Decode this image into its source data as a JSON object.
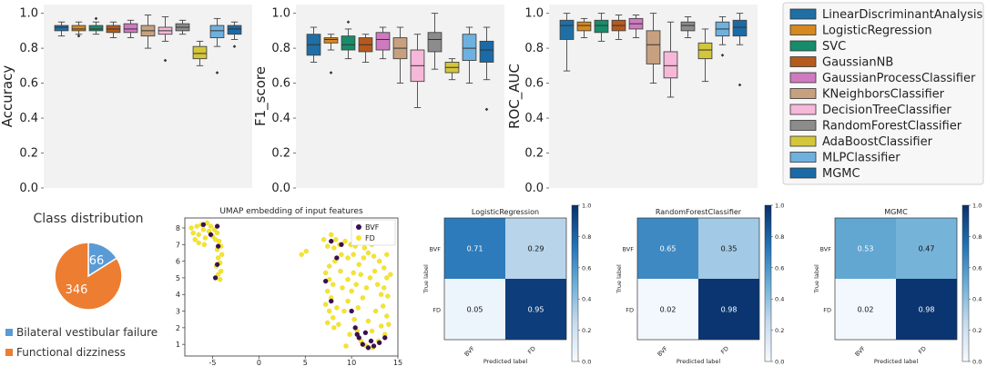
{
  "colors": {
    "models": [
      "#1f6fa5",
      "#d6891e",
      "#178c6a",
      "#b55a1c",
      "#cf7ac0",
      "#c7a17f",
      "#f5b8d8",
      "#8c8c8c",
      "#d4c63a",
      "#6eb1df",
      "#1a6aa6"
    ],
    "pie_bvf": "#5b9bd5",
    "pie_fd": "#ed7d31",
    "umap_bvf": "#3b0f4f",
    "umap_fd": "#f5e52a"
  },
  "chart_data": [
    {
      "type": "box",
      "id": "accuracy",
      "ylabel": "Accuracy",
      "ylim": [
        0.0,
        1.05
      ],
      "yticks": [
        "0.0",
        "0.2",
        "0.4",
        "0.6",
        "0.8",
        "1.0"
      ],
      "series": [
        {
          "name": "LinearDiscriminantAnalysis",
          "stats": [
            0.87,
            0.9,
            0.92,
            0.93,
            0.95
          ],
          "outliers": []
        },
        {
          "name": "LogisticRegression",
          "stats": [
            0.88,
            0.9,
            0.91,
            0.93,
            0.95
          ],
          "outliers": [
            0.87
          ]
        },
        {
          "name": "SVC",
          "stats": [
            0.88,
            0.9,
            0.91,
            0.93,
            0.95
          ],
          "outliers": [
            0.97
          ]
        },
        {
          "name": "GaussianNB",
          "stats": [
            0.86,
            0.89,
            0.91,
            0.93,
            0.95
          ],
          "outliers": []
        },
        {
          "name": "GaussianProcessClassifier",
          "stats": [
            0.86,
            0.89,
            0.91,
            0.94,
            0.96
          ],
          "outliers": []
        },
        {
          "name": "KNeighborsClassifier",
          "stats": [
            0.8,
            0.87,
            0.9,
            0.93,
            0.99
          ],
          "outliers": []
        },
        {
          "name": "DecisionTreeClassifier",
          "stats": [
            0.84,
            0.88,
            0.9,
            0.92,
            0.98
          ],
          "outliers": [
            0.73
          ]
        },
        {
          "name": "RandomForestClassifier",
          "stats": [
            0.88,
            0.9,
            0.92,
            0.94,
            0.96
          ],
          "outliers": []
        },
        {
          "name": "AdaBoostClassifier",
          "stats": [
            0.7,
            0.74,
            0.77,
            0.81,
            0.84
          ],
          "outliers": []
        },
        {
          "name": "MLPClassifier",
          "stats": [
            0.81,
            0.86,
            0.9,
            0.93,
            0.97
          ],
          "outliers": [
            0.66
          ]
        },
        {
          "name": "MGMC",
          "stats": [
            0.85,
            0.88,
            0.91,
            0.93,
            0.95
          ],
          "outliers": [
            0.81
          ]
        }
      ]
    },
    {
      "type": "box",
      "id": "f1",
      "ylabel": "F1_score",
      "ylim": [
        0.0,
        1.05
      ],
      "yticks": [
        "0.0",
        "0.2",
        "0.4",
        "0.6",
        "0.8",
        "1.0"
      ],
      "series": [
        {
          "name": "LinearDiscriminantAnalysis",
          "stats": [
            0.72,
            0.76,
            0.82,
            0.88,
            0.92
          ],
          "outliers": []
        },
        {
          "name": "LogisticRegression",
          "stats": [
            0.79,
            0.83,
            0.85,
            0.86,
            0.88
          ],
          "outliers": [
            0.66
          ]
        },
        {
          "name": "SVC",
          "stats": [
            0.74,
            0.79,
            0.82,
            0.87,
            0.91
          ],
          "outliers": [
            0.95
          ]
        },
        {
          "name": "GaussianNB",
          "stats": [
            0.72,
            0.78,
            0.82,
            0.86,
            0.88
          ],
          "outliers": []
        },
        {
          "name": "GaussianProcessClassifier",
          "stats": [
            0.74,
            0.79,
            0.85,
            0.89,
            0.92
          ],
          "outliers": []
        },
        {
          "name": "KNeighborsClassifier",
          "stats": [
            0.6,
            0.74,
            0.8,
            0.86,
            0.92
          ],
          "outliers": []
        },
        {
          "name": "DecisionTreeClassifier",
          "stats": [
            0.46,
            0.61,
            0.7,
            0.79,
            0.88
          ],
          "outliers": []
        },
        {
          "name": "RandomForestClassifier",
          "stats": [
            0.68,
            0.78,
            0.85,
            0.89,
            1.0
          ],
          "outliers": []
        },
        {
          "name": "AdaBoostClassifier",
          "stats": [
            0.62,
            0.66,
            0.69,
            0.72,
            0.74
          ],
          "outliers": []
        },
        {
          "name": "MLPClassifier",
          "stats": [
            0.6,
            0.73,
            0.8,
            0.88,
            0.92
          ],
          "outliers": []
        },
        {
          "name": "MGMC",
          "stats": [
            0.62,
            0.72,
            0.79,
            0.84,
            0.92
          ],
          "outliers": [
            0.45
          ]
        }
      ]
    },
    {
      "type": "box",
      "id": "roc",
      "ylabel": "ROC_AUC",
      "ylim": [
        0.0,
        1.05
      ],
      "yticks": [
        "0.0",
        "0.2",
        "0.4",
        "0.6",
        "0.8",
        "1.0"
      ],
      "series": [
        {
          "name": "LinearDiscriminantAnalysis",
          "stats": [
            0.67,
            0.85,
            0.93,
            0.96,
            1.0
          ],
          "outliers": []
        },
        {
          "name": "LogisticRegression",
          "stats": [
            0.86,
            0.9,
            0.93,
            0.95,
            0.97
          ],
          "outliers": []
        },
        {
          "name": "SVC",
          "stats": [
            0.84,
            0.89,
            0.93,
            0.96,
            1.0
          ],
          "outliers": []
        },
        {
          "name": "GaussianNB",
          "stats": [
            0.85,
            0.9,
            0.93,
            0.96,
            0.99
          ],
          "outliers": []
        },
        {
          "name": "GaussianProcessClassifier",
          "stats": [
            0.86,
            0.91,
            0.94,
            0.97,
            0.99
          ],
          "outliers": []
        },
        {
          "name": "KNeighborsClassifier",
          "stats": [
            0.6,
            0.71,
            0.82,
            0.9,
            1.0
          ],
          "outliers": []
        },
        {
          "name": "DecisionTreeClassifier",
          "stats": [
            0.52,
            0.63,
            0.7,
            0.78,
            0.95
          ],
          "outliers": []
        },
        {
          "name": "RandomForestClassifier",
          "stats": [
            0.86,
            0.9,
            0.93,
            0.95,
            0.98
          ],
          "outliers": []
        },
        {
          "name": "AdaBoostClassifier",
          "stats": [
            0.61,
            0.74,
            0.79,
            0.83,
            0.91
          ],
          "outliers": []
        },
        {
          "name": "MLPClassifier",
          "stats": [
            0.82,
            0.87,
            0.91,
            0.95,
            0.98
          ],
          "outliers": [
            0.76
          ]
        },
        {
          "name": "MGMC",
          "stats": [
            0.82,
            0.87,
            0.92,
            0.96,
            1.0
          ],
          "outliers": [
            0.59
          ]
        }
      ]
    },
    {
      "type": "legend",
      "entries": [
        "LinearDiscriminantAnalysis",
        "LogisticRegression",
        "SVC",
        "GaussianNB",
        "GaussianProcessClassifier",
        "KNeighborsClassifier",
        "DecisionTreeClassifier",
        "RandomForestClassifier",
        "AdaBoostClassifier",
        "MLPClassifier",
        "MGMC"
      ]
    },
    {
      "type": "pie",
      "title": "Class distribution",
      "labels": [
        "Bilateral vestibular failure",
        "Functional dizziness"
      ],
      "values": [
        66,
        346
      ]
    },
    {
      "type": "scatter",
      "title": "UMAP embedding of input features",
      "xlim": [
        -8,
        15
      ],
      "ylim": [
        0.3,
        8.6
      ],
      "xticks": [
        -5,
        0,
        5,
        10,
        15
      ],
      "yticks": [
        1,
        2,
        3,
        4,
        5,
        6,
        7,
        8
      ],
      "legend": [
        "BVF",
        "FD"
      ],
      "series": [
        {
          "name": "FD",
          "points": [
            [
              -7.3,
              8.0
            ],
            [
              -7.1,
              7.7
            ],
            [
              -6.9,
              7.3
            ],
            [
              -6.7,
              8.1
            ],
            [
              -6.5,
              7.6
            ],
            [
              -6.2,
              8.2
            ],
            [
              -6.0,
              7.9
            ],
            [
              -5.8,
              7.4
            ],
            [
              -5.6,
              8.3
            ],
            [
              -5.4,
              7.8
            ],
            [
              -5.2,
              8.1
            ],
            [
              -5.0,
              7.5
            ],
            [
              -4.8,
              7.9
            ],
            [
              -4.5,
              7.7
            ],
            [
              -4.3,
              7.2
            ],
            [
              -4.1,
              6.9
            ],
            [
              -4.5,
              6.7
            ],
            [
              -4.0,
              6.4
            ],
            [
              -4.4,
              6.2
            ],
            [
              -4.2,
              5.9
            ],
            [
              -4.6,
              5.7
            ],
            [
              -4.1,
              5.4
            ],
            [
              -4.4,
              5.2
            ],
            [
              -4.2,
              4.9
            ],
            [
              -6.5,
              7.1
            ],
            [
              -5.9,
              7.0
            ],
            [
              -4.7,
              7.3
            ],
            [
              4.6,
              6.4
            ],
            [
              5.1,
              6.6
            ],
            [
              7.0,
              7.3
            ],
            [
              7.4,
              6.9
            ],
            [
              7.8,
              7.6
            ],
            [
              8.3,
              7.3
            ],
            [
              8.1,
              6.8
            ],
            [
              8.7,
              7.0
            ],
            [
              9.3,
              7.2
            ],
            [
              9.9,
              7.0
            ],
            [
              10.4,
              6.9
            ],
            [
              10.2,
              6.4
            ],
            [
              9.6,
              6.2
            ],
            [
              8.9,
              6.4
            ],
            [
              8.2,
              6.0
            ],
            [
              7.6,
              5.7
            ],
            [
              7.2,
              5.3
            ],
            [
              7.6,
              4.9
            ],
            [
              8.0,
              4.6
            ],
            [
              7.4,
              4.2
            ],
            [
              7.8,
              3.8
            ],
            [
              7.2,
              3.4
            ],
            [
              7.6,
              3.0
            ],
            [
              8.0,
              2.6
            ],
            [
              7.4,
              2.3
            ],
            [
              8.1,
              2.0
            ],
            [
              8.6,
              2.2
            ],
            [
              9.2,
              3.0
            ],
            [
              9.6,
              3.6
            ],
            [
              10.0,
              4.2
            ],
            [
              9.6,
              4.9
            ],
            [
              10.2,
              5.3
            ],
            [
              10.8,
              5.8
            ],
            [
              11.3,
              6.2
            ],
            [
              11.8,
              6.5
            ],
            [
              12.4,
              6.3
            ],
            [
              13.0,
              6.0
            ],
            [
              13.5,
              5.6
            ],
            [
              13.8,
              5.0
            ],
            [
              13.5,
              4.4
            ],
            [
              13.9,
              3.9
            ],
            [
              13.4,
              3.3
            ],
            [
              13.8,
              2.7
            ],
            [
              13.2,
              2.1
            ],
            [
              13.6,
              1.6
            ],
            [
              12.9,
              1.2
            ],
            [
              12.3,
              0.8
            ],
            [
              11.6,
              0.9
            ],
            [
              11.0,
              1.2
            ],
            [
              10.6,
              1.8
            ],
            [
              10.3,
              2.5
            ],
            [
              10.7,
              3.2
            ],
            [
              11.2,
              3.8
            ],
            [
              11.6,
              4.4
            ],
            [
              12.0,
              5.0
            ],
            [
              12.5,
              5.4
            ],
            [
              11.0,
              5.2
            ],
            [
              10.5,
              4.6
            ],
            [
              12.8,
              4.6
            ],
            [
              13.2,
              4.0
            ],
            [
              12.6,
              3.0
            ],
            [
              11.8,
              2.4
            ],
            [
              12.2,
              1.8
            ],
            [
              8.8,
              5.4
            ],
            [
              9.0,
              4.4
            ],
            [
              8.4,
              3.2
            ],
            [
              11.4,
              6.8
            ],
            [
              12.2,
              7.0
            ],
            [
              13.8,
              6.4
            ],
            [
              14.2,
              5.2
            ],
            [
              14.0,
              2.2
            ],
            [
              9.8,
              1.6
            ],
            [
              9.4,
              0.9
            ]
          ]
        },
        {
          "name": "BVF",
          "points": [
            [
              -6.0,
              8.2
            ],
            [
              -5.2,
              7.6
            ],
            [
              -4.5,
              8.1
            ],
            [
              -4.4,
              6.9
            ],
            [
              -4.7,
              5.0
            ],
            [
              -4.5,
              5.8
            ],
            [
              7.8,
              7.2
            ],
            [
              8.9,
              7.0
            ],
            [
              8.4,
              6.2
            ],
            [
              7.2,
              4.8
            ],
            [
              7.8,
              3.6
            ],
            [
              10.0,
              3.0
            ],
            [
              10.4,
              2.0
            ],
            [
              10.8,
              1.4
            ],
            [
              11.2,
              1.0
            ],
            [
              11.8,
              0.8
            ],
            [
              12.4,
              0.9
            ],
            [
              13.0,
              1.1
            ],
            [
              13.6,
              1.4
            ],
            [
              11.5,
              1.7
            ],
            [
              12.1,
              1.2
            ],
            [
              10.6,
              1.6
            ]
          ]
        }
      ]
    },
    {
      "type": "heatmap",
      "title": "LogisticRegression",
      "xlabel": "Predicted label",
      "ylabel": "True label",
      "xticks": [
        "BVF",
        "FD"
      ],
      "yticks": [
        "BVF",
        "FD"
      ],
      "values": [
        [
          0.71,
          0.29
        ],
        [
          0.05,
          0.95
        ]
      ],
      "labels": [
        [
          "0.71",
          "0.29"
        ],
        [
          "0.05",
          "0.95"
        ]
      ],
      "colorbar": [
        "0.0",
        "0.2",
        "0.4",
        "0.6",
        "0.8",
        "1.0"
      ]
    },
    {
      "type": "heatmap",
      "title": "RandomForestClassifier",
      "xlabel": "Predicted label",
      "ylabel": "True label",
      "xticks": [
        "BVF",
        "FD"
      ],
      "yticks": [
        "BVF",
        "FD"
      ],
      "values": [
        [
          0.65,
          0.35
        ],
        [
          0.02,
          0.98
        ]
      ],
      "labels": [
        [
          "0.65",
          "0.35"
        ],
        [
          "0.02",
          "0.98"
        ]
      ],
      "colorbar": [
        "0.0",
        "0.2",
        "0.4",
        "0.6",
        "0.8",
        "1.0"
      ]
    },
    {
      "type": "heatmap",
      "title": "MGMC",
      "xlabel": "Predicted label",
      "ylabel": "True label",
      "xticks": [
        "BVF",
        "FD"
      ],
      "yticks": [
        "BVF",
        "FD"
      ],
      "values": [
        [
          0.53,
          0.47
        ],
        [
          0.02,
          0.98
        ]
      ],
      "labels": [
        [
          "0.53",
          "0.47"
        ],
        [
          "0.02",
          "0.98"
        ]
      ],
      "colorbar": [
        "0.0",
        "0.2",
        "0.4",
        "0.6",
        "0.8",
        "1.0"
      ]
    }
  ]
}
